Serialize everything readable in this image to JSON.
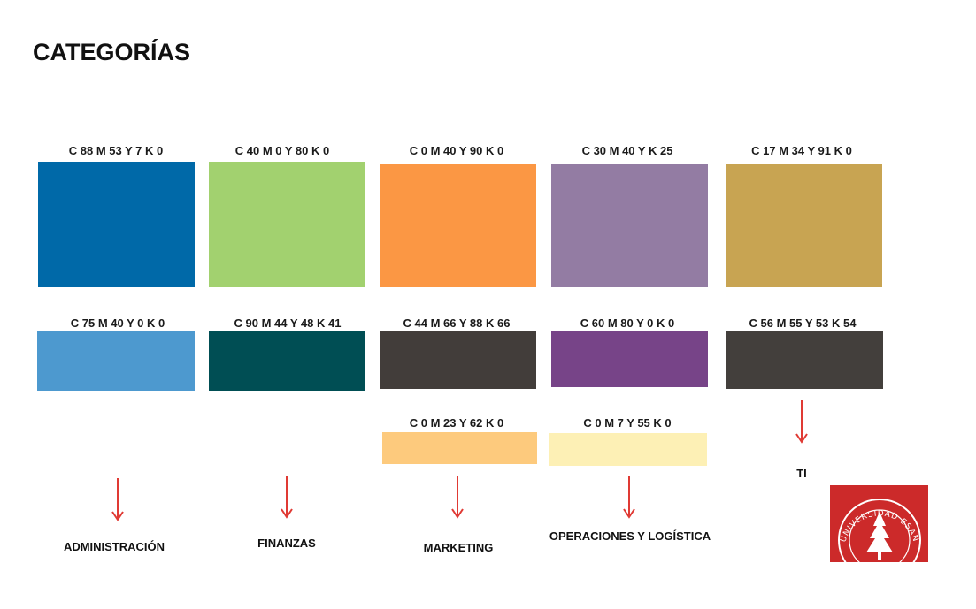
{
  "title": "CATEGORÍAS",
  "swatches": [
    {
      "cmyk": "C 88 M 53 Y 7 K 0",
      "color": "#0069a8"
    },
    {
      "cmyk": "C 40 M 0 Y 80 K 0",
      "color": "#a2d16f"
    },
    {
      "cmyk": "C 0 M 40 Y 90 K 0",
      "color": "#fb9744"
    },
    {
      "cmyk": "C 30 M 40 Y  K 25",
      "color": "#937ca3"
    },
    {
      "cmyk": "C 17 M 34 Y 91 K 0",
      "color": "#c8a452"
    },
    {
      "cmyk": "C 75 M 40 Y 0 K 0",
      "color": "#4d99cf"
    },
    {
      "cmyk": "C 90 M 44 Y 48 K 41",
      "color": "#004e54"
    },
    {
      "cmyk": "C 44 M 66 Y 88 K 66",
      "color": "#423d3a"
    },
    {
      "cmyk": "C 60 M 80 Y 0 K 0",
      "color": "#774488"
    },
    {
      "cmyk": "C 56 M 55 Y 53 K 54",
      "color": "#433f3c"
    },
    {
      "cmyk": "C 0 M 23 Y 62 K 0",
      "color": "#fdca7d"
    },
    {
      "cmyk": "C 0 M 7 Y 55 K 0",
      "color": "#fdf0b5"
    }
  ],
  "categories": [
    {
      "label": "ADMINISTRACIÓN"
    },
    {
      "label": "FINANZAS"
    },
    {
      "label": "MARKETING"
    },
    {
      "label": "OPERACIONES Y LOGÍSTICA"
    },
    {
      "label": "TI"
    }
  ],
  "arrow_color": "#e03a34",
  "logo": {
    "text": "UNIVERSIDAD ESAN",
    "color": "#cc2a2a"
  }
}
